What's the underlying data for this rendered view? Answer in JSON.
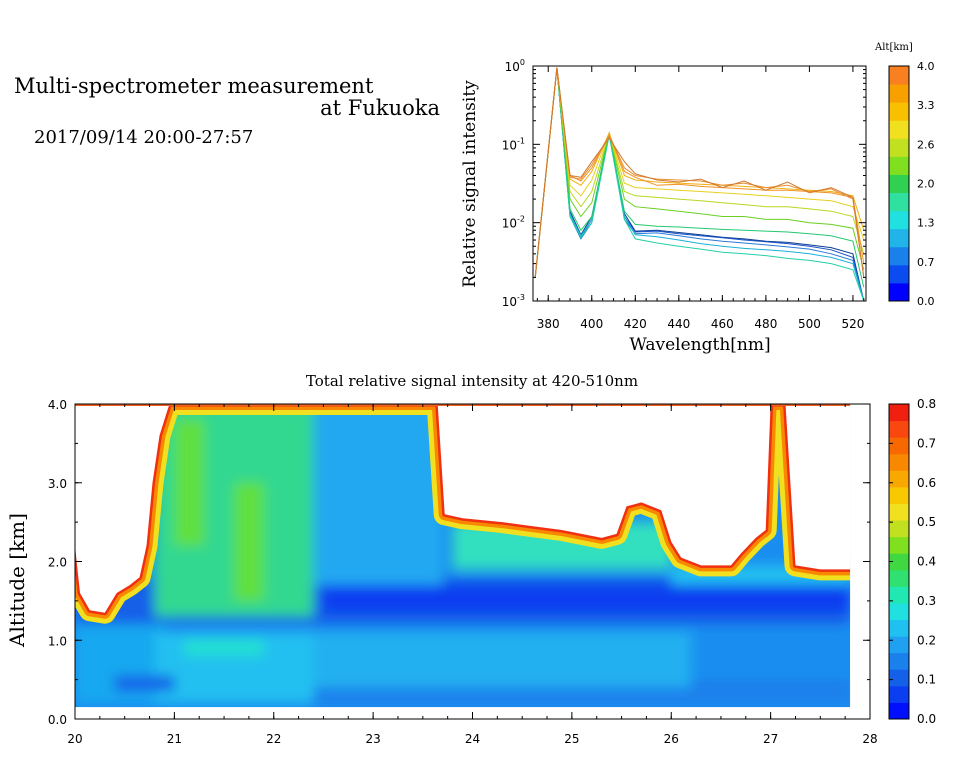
{
  "header": {
    "title_line1": "Multi-spectrometer measurement",
    "title_line2": "at Fukuoka",
    "subtitle": "2017/09/14 20:00-27:57"
  },
  "chart_data": [
    {
      "type": "line",
      "title": "",
      "xlabel": "Wavelength[nm]",
      "ylabel": "Relative signal intensity",
      "yscale": "log",
      "xlim": [
        373,
        526
      ],
      "ylim": [
        0.001,
        1
      ],
      "x_ticks": [
        380,
        400,
        420,
        440,
        460,
        480,
        500,
        520
      ],
      "y_ticks": [
        {
          "v": 0.001,
          "e": "-3"
        },
        {
          "v": 0.01,
          "e": "-2"
        },
        {
          "v": 0.1,
          "e": "-1"
        },
        {
          "v": 1,
          "e": "0"
        }
      ],
      "x": [
        374,
        384,
        390,
        395,
        400,
        408,
        415,
        420,
        430,
        440,
        450,
        460,
        470,
        480,
        490,
        500,
        510,
        520,
        525
      ],
      "series": [
        {
          "alt": 0.0,
          "color": "#0b3d91",
          "values": [
            0.002,
            0.95,
            0.014,
            0.007,
            0.012,
            0.14,
            0.013,
            0.0078,
            0.008,
            0.0075,
            0.007,
            0.0065,
            0.0062,
            0.0058,
            0.0056,
            0.0052,
            0.0048,
            0.004,
            0.001
          ]
        },
        {
          "alt": 0.35,
          "color": "#1a50c8",
          "values": [
            0.002,
            0.95,
            0.013,
            0.0065,
            0.011,
            0.14,
            0.012,
            0.0076,
            0.0078,
            0.0072,
            0.0068,
            0.0064,
            0.006,
            0.0057,
            0.0054,
            0.005,
            0.0045,
            0.0036,
            0.001
          ]
        },
        {
          "alt": 0.7,
          "color": "#2a7ad8",
          "values": [
            0.002,
            0.95,
            0.012,
            0.0062,
            0.01,
            0.14,
            0.011,
            0.0072,
            0.0074,
            0.0068,
            0.0062,
            0.0058,
            0.0055,
            0.0052,
            0.0049,
            0.0046,
            0.004,
            0.0033,
            0.001
          ]
        },
        {
          "alt": 1.0,
          "color": "#1ab0d8",
          "values": [
            0.002,
            0.95,
            0.013,
            0.0068,
            0.011,
            0.14,
            0.012,
            0.007,
            0.0066,
            0.006,
            0.0054,
            0.005,
            0.0047,
            0.0045,
            0.0043,
            0.004,
            0.0036,
            0.003,
            0.001
          ]
        },
        {
          "alt": 1.3,
          "color": "#22d0a8",
          "values": [
            0.002,
            0.95,
            0.012,
            0.0065,
            0.01,
            0.13,
            0.011,
            0.0062,
            0.0055,
            0.005,
            0.0046,
            0.0042,
            0.004,
            0.0038,
            0.0035,
            0.0033,
            0.003,
            0.0025,
            0.001
          ]
        },
        {
          "alt": 1.6,
          "color": "#24c870",
          "values": [
            0.002,
            0.95,
            0.015,
            0.008,
            0.012,
            0.14,
            0.014,
            0.0095,
            0.009,
            0.0088,
            0.0085,
            0.0082,
            0.008,
            0.0078,
            0.0076,
            0.0072,
            0.0068,
            0.0058,
            0.0015
          ]
        },
        {
          "alt": 2.0,
          "color": "#6ad020",
          "values": [
            0.002,
            0.95,
            0.02,
            0.012,
            0.018,
            0.14,
            0.02,
            0.016,
            0.015,
            0.014,
            0.013,
            0.012,
            0.012,
            0.011,
            0.011,
            0.01,
            0.0095,
            0.0085,
            0.0025
          ]
        },
        {
          "alt": 2.3,
          "color": "#b8d820",
          "values": [
            0.002,
            0.95,
            0.025,
            0.016,
            0.025,
            0.14,
            0.025,
            0.022,
            0.021,
            0.02,
            0.019,
            0.018,
            0.017,
            0.016,
            0.016,
            0.015,
            0.014,
            0.012,
            0.004
          ]
        },
        {
          "alt": 2.6,
          "color": "#e8d020",
          "values": [
            0.002,
            0.95,
            0.03,
            0.022,
            0.035,
            0.14,
            0.032,
            0.028,
            0.027,
            0.026,
            0.025,
            0.024,
            0.023,
            0.022,
            0.021,
            0.02,
            0.019,
            0.016,
            0.006
          ]
        },
        {
          "alt": 3.0,
          "color": "#f0b010",
          "values": [
            0.002,
            0.95,
            0.036,
            0.03,
            0.045,
            0.14,
            0.04,
            0.035,
            0.033,
            0.032,
            0.031,
            0.03,
            0.029,
            0.028,
            0.027,
            0.026,
            0.025,
            0.022,
            0.008
          ]
        },
        {
          "alt": 3.3,
          "color": "#f09020",
          "values": [
            0.002,
            0.95,
            0.04,
            0.034,
            0.05,
            0.13,
            0.045,
            0.038,
            0.03,
            0.031,
            0.029,
            0.028,
            0.027,
            0.026,
            0.026,
            0.025,
            0.024,
            0.021,
            0.003
          ]
        },
        {
          "alt": 3.6,
          "color": "#e89030",
          "values": [
            0.002,
            0.95,
            0.038,
            0.036,
            0.055,
            0.13,
            0.05,
            0.04,
            0.036,
            0.035,
            0.034,
            0.03,
            0.032,
            0.028,
            0.03,
            0.025,
            0.027,
            0.02,
            0.002
          ]
        },
        {
          "alt": 4.0,
          "color": "#d07830",
          "values": [
            0.002,
            0.95,
            0.04,
            0.038,
            0.06,
            0.12,
            0.06,
            0.042,
            0.035,
            0.033,
            0.036,
            0.028,
            0.034,
            0.026,
            0.033,
            0.024,
            0.028,
            0.021,
            0.002
          ]
        }
      ],
      "colorbar": {
        "label": "Alt[km]",
        "ticks": [
          "0.0",
          "0.7",
          "1.3",
          "2.0",
          "2.6",
          "3.3",
          "4.0"
        ],
        "colors": [
          "#0000ff",
          "#0a4cf0",
          "#1a80ec",
          "#20b4e8",
          "#20e0e0",
          "#30e0a0",
          "#30d050",
          "#80e020",
          "#c0e020",
          "#f0e020",
          "#f8c000",
          "#f8a000",
          "#f88020"
        ]
      }
    },
    {
      "type": "heatmap",
      "title": "Total relative signal intensity at 420-510nm",
      "xlabel": "",
      "ylabel": "Altitude [km]",
      "xlim": [
        20,
        28
      ],
      "ylim": [
        0,
        4
      ],
      "x_ticks": [
        20,
        21,
        22,
        23,
        24,
        25,
        26,
        27,
        28
      ],
      "y_ticks": [
        "0.0",
        "1.0",
        "2.0",
        "3.0",
        "4.0"
      ],
      "data_time_range": [
        20,
        27.8
      ],
      "data_alt_range": [
        0.15,
        4.0
      ],
      "cloud_base_profile": [
        [
          20,
          2.2
        ],
        [
          20.05,
          1.6
        ],
        [
          20.15,
          1.38
        ],
        [
          20.3,
          1.35
        ],
        [
          20.42,
          1.6
        ],
        [
          20.55,
          1.7
        ],
        [
          20.65,
          1.8
        ],
        [
          20.72,
          2.2
        ],
        [
          20.78,
          3.0
        ],
        [
          20.85,
          3.6
        ],
        [
          20.95,
          4.0
        ],
        [
          23.65,
          4.0
        ],
        [
          23.72,
          2.6
        ],
        [
          23.9,
          2.55
        ],
        [
          24.3,
          2.5
        ],
        [
          24.6,
          2.45
        ],
        [
          24.9,
          2.4
        ],
        [
          25.3,
          2.3
        ],
        [
          25.45,
          2.35
        ],
        [
          25.55,
          2.7
        ],
        [
          25.7,
          2.75
        ],
        [
          25.9,
          2.65
        ],
        [
          26.0,
          2.25
        ],
        [
          26.1,
          2.05
        ],
        [
          26.3,
          1.95
        ],
        [
          26.6,
          1.95
        ],
        [
          26.7,
          2.1
        ],
        [
          26.85,
          2.3
        ],
        [
          26.95,
          2.4
        ],
        [
          27.0,
          4.0
        ],
        [
          27.15,
          4.0
        ],
        [
          27.25,
          1.95
        ],
        [
          27.5,
          1.9
        ],
        [
          27.8,
          1.9
        ]
      ],
      "colorbar": {
        "ticks": [
          "0.0",
          "0.1",
          "0.2",
          "0.3",
          "0.4",
          "0.5",
          "0.6",
          "0.7",
          "0.8"
        ],
        "colors": [
          "#0010ff",
          "#0a3ef0",
          "#1560e8",
          "#1a80ec",
          "#20a0f0",
          "#20c0f0",
          "#20e0e0",
          "#20e8b0",
          "#30e070",
          "#40d840",
          "#80e020",
          "#c0e020",
          "#f0e020",
          "#f8c800",
          "#f8a800",
          "#f88800",
          "#f86800",
          "#f84810",
          "#f02010"
        ]
      }
    }
  ]
}
